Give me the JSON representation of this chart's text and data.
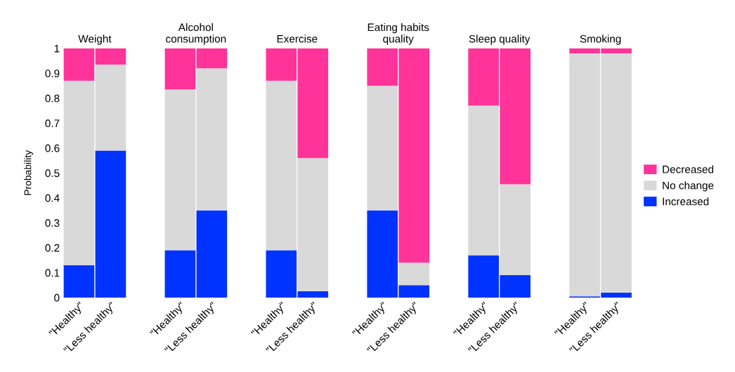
{
  "chart_data": [
    {
      "type": "bar",
      "stacked": true,
      "title": "Weight",
      "ylabel": "Probability",
      "legend": "right",
      "categories": [
        "\"Healthy\"",
        "\"Less healthy\""
      ],
      "ylim": [
        0,
        1
      ],
      "yticks": [
        0,
        0.1,
        0.2,
        0.3,
        0.4,
        0.5,
        0.6,
        0.7,
        0.8,
        0.9,
        1
      ],
      "series": [
        {
          "name": "Increased",
          "color": "#0033ff",
          "values": [
            0.13,
            0.59
          ]
        },
        {
          "name": "No change",
          "color": "#d9d9d9",
          "values": [
            0.74,
            0.345
          ]
        },
        {
          "name": "Decreased",
          "color": "#ff3399",
          "values": [
            0.13,
            0.065
          ]
        }
      ]
    },
    {
      "type": "bar",
      "stacked": true,
      "title": "Alcohol\nconsumption",
      "categories": [
        "\"Healthy\"",
        "\"Less healthy\""
      ],
      "ylim": [
        0,
        1
      ],
      "tick_labels": "x",
      "series": [
        {
          "color": "#0033ff",
          "values": [
            0.19,
            0.35
          ]
        },
        {
          "color": "#d9d9d9",
          "values": [
            0.645,
            0.57
          ]
        },
        {
          "color": "#ff3399",
          "values": [
            0.165,
            0.08
          ]
        }
      ]
    },
    {
      "type": "bar",
      "stacked": true,
      "title": "Exercise",
      "categories": [
        "\"Healthy\"",
        "\"Less healthy\""
      ],
      "ylim": [
        0,
        1
      ],
      "tick_labels": "x",
      "series": [
        {
          "color": "#0033ff",
          "values": [
            0.19,
            0.025
          ]
        },
        {
          "color": "#d9d9d9",
          "values": [
            0.68,
            0.535
          ]
        },
        {
          "color": "#ff3399",
          "values": [
            0.13,
            0.44
          ]
        }
      ]
    },
    {
      "type": "bar",
      "stacked": true,
      "title": "Eating habits\nquality",
      "categories": [
        "\"Healthy\"",
        "\"Less healthy\""
      ],
      "ylim": [
        0,
        1
      ],
      "tick_labels": "x",
      "series": [
        {
          "color": "#0033ff",
          "values": [
            0.35,
            0.05
          ]
        },
        {
          "color": "#d9d9d9",
          "values": [
            0.5,
            0.09
          ]
        },
        {
          "color": "#ff3399",
          "values": [
            0.15,
            0.86
          ]
        }
      ]
    },
    {
      "type": "bar",
      "stacked": true,
      "title": "Sleep quality",
      "categories": [
        "\"Healthy\"",
        "\"Less healthy\""
      ],
      "ylim": [
        0,
        1
      ],
      "tick_labels": "x",
      "series": [
        {
          "color": "#0033ff",
          "values": [
            0.17,
            0.09
          ]
        },
        {
          "color": "#d9d9d9",
          "values": [
            0.6,
            0.365
          ]
        },
        {
          "color": "#ff3399",
          "values": [
            0.23,
            0.545
          ]
        }
      ]
    },
    {
      "type": "bar",
      "stacked": true,
      "title": "Smoking",
      "categories": [
        "\"Healthy\"",
        "\"Less healthy\""
      ],
      "ylim": [
        0,
        1
      ],
      "tick_labels": "x",
      "series": [
        {
          "color": "#0033ff",
          "values": [
            0.005,
            0.02
          ]
        },
        {
          "color": "#d9d9d9",
          "values": [
            0.975,
            0.96
          ]
        },
        {
          "color": "#ff3399",
          "values": [
            0.02,
            0.02
          ]
        }
      ]
    }
  ]
}
